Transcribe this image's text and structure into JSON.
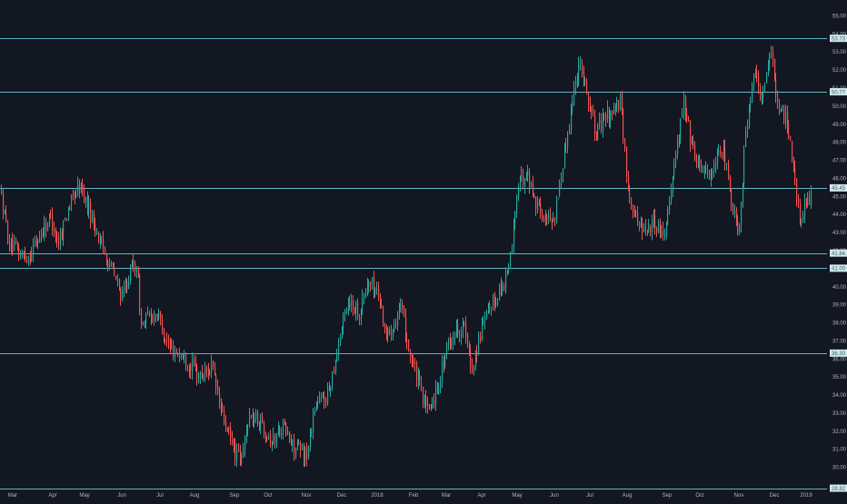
{
  "colors": {
    "background": "#131722",
    "up": "#26a69a",
    "down": "#ef5350",
    "level_line": "#5fb8c2",
    "axis_text": "#b2b5be",
    "level_tag_bg": "#d8e6ea",
    "level_tag_text": "#1b6b7a"
  },
  "chart_data": {
    "type": "candlestick",
    "ylim": [
      29.0,
      55.4
    ],
    "y_ticks": [
      "30.00",
      "31.00",
      "32.00",
      "33.00",
      "34.00",
      "35.00",
      "36.00",
      "37.00",
      "38.00",
      "39.00",
      "40.00",
      "41.00",
      "42.00",
      "43.00",
      "44.00",
      "45.00",
      "46.00",
      "47.00",
      "48.00",
      "49.00",
      "50.00",
      "51.00",
      "52.00",
      "53.00",
      "54.00",
      "55.00"
    ],
    "x_ticks": [
      "Mar",
      "Apr",
      "May",
      "Jun",
      "Jul",
      "Aug",
      "Sep",
      "Oct",
      "Nov",
      "Dec",
      "2018",
      "Feb",
      "Mar",
      "Apr",
      "May",
      "Jun",
      "Jul",
      "Aug",
      "Sep",
      "Oct",
      "Nov",
      "Dec",
      "2019"
    ],
    "levels": [
      {
        "value": 53.73,
        "label": "53.73"
      },
      {
        "value": 50.77,
        "label": "50.77"
      },
      {
        "value": 45.45,
        "label": "45.45"
      },
      {
        "value": 41.84,
        "label": "41.84"
      },
      {
        "value": 41.0,
        "label": "41.00"
      },
      {
        "value": 36.3,
        "label": "36.30"
      },
      {
        "value": 28.82,
        "label": "28.82"
      }
    ],
    "path": [
      [
        0,
        45.2
      ],
      [
        10,
        42.2
      ],
      [
        30,
        41.6
      ],
      [
        55,
        43.9
      ],
      [
        63,
        42.4
      ],
      [
        75,
        44.4
      ],
      [
        87,
        45.6
      ],
      [
        98,
        44.2
      ],
      [
        110,
        42.4
      ],
      [
        122,
        41.0
      ],
      [
        134,
        39.4
      ],
      [
        144,
        41.0
      ],
      [
        150,
        41.2
      ],
      [
        155,
        37.8
      ],
      [
        165,
        38.4
      ],
      [
        172,
        38.6
      ],
      [
        185,
        36.6
      ],
      [
        200,
        36.2
      ],
      [
        210,
        35.6
      ],
      [
        220,
        35.0
      ],
      [
        232,
        35.6
      ],
      [
        245,
        32.6
      ],
      [
        258,
        30.8
      ],
      [
        265,
        30.3
      ],
      [
        273,
        32.8
      ],
      [
        285,
        32.6
      ],
      [
        300,
        31.4
      ],
      [
        310,
        32.4
      ],
      [
        320,
        31.2
      ],
      [
        330,
        30.9
      ],
      [
        338,
        30.7
      ],
      [
        345,
        33.4
      ],
      [
        360,
        34.0
      ],
      [
        370,
        36.4
      ],
      [
        382,
        39.3
      ],
      [
        395,
        38.6
      ],
      [
        405,
        40.3
      ],
      [
        415,
        39.7
      ],
      [
        425,
        37.2
      ],
      [
        440,
        38.8
      ],
      [
        450,
        36.4
      ],
      [
        460,
        34.6
      ],
      [
        470,
        33.0
      ],
      [
        480,
        34.3
      ],
      [
        490,
        36.4
      ],
      [
        500,
        37.6
      ],
      [
        510,
        37.8
      ],
      [
        518,
        35.3
      ],
      [
        528,
        37.4
      ],
      [
        540,
        39.0
      ],
      [
        555,
        40.3
      ],
      [
        562,
        41.8
      ],
      [
        568,
        45.2
      ],
      [
        578,
        46.4
      ],
      [
        590,
        44.6
      ],
      [
        600,
        43.6
      ],
      [
        610,
        44.0
      ],
      [
        620,
        47.2
      ],
      [
        630,
        50.6
      ],
      [
        638,
        52.6
      ],
      [
        646,
        50.6
      ],
      [
        655,
        48.4
      ],
      [
        665,
        49.4
      ],
      [
        675,
        49.8
      ],
      [
        682,
        50.2
      ],
      [
        690,
        45.6
      ],
      [
        700,
        43.6
      ],
      [
        710,
        43.2
      ],
      [
        720,
        43.6
      ],
      [
        730,
        42.8
      ],
      [
        740,
        46.4
      ],
      [
        752,
        50.2
      ],
      [
        762,
        47.4
      ],
      [
        772,
        46.6
      ],
      [
        782,
        46.2
      ],
      [
        795,
        47.6
      ],
      [
        805,
        44.6
      ],
      [
        812,
        43.0
      ],
      [
        820,
        48.6
      ],
      [
        830,
        51.8
      ],
      [
        838,
        50.2
      ],
      [
        848,
        53.3
      ],
      [
        856,
        49.6
      ],
      [
        864,
        49.4
      ],
      [
        872,
        47.0
      ],
      [
        880,
        43.2
      ],
      [
        885,
        44.6
      ],
      [
        892,
        45.0
      ]
    ]
  }
}
